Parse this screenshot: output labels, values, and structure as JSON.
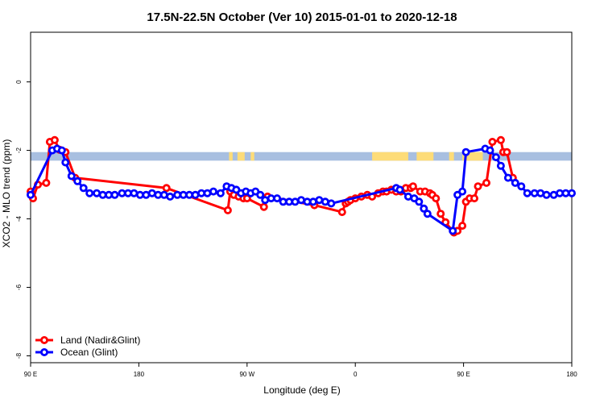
{
  "chart_data": {
    "type": "line",
    "title": "17.5N-22.5N October (Ver 10)   2015-01-01 to 2020-12-18",
    "xlabel": "Longitude (deg E)",
    "ylabel": "XCO2 - MLO trend (ppm)",
    "x_ticks": [
      {
        "value": 90,
        "label": "90 E"
      },
      {
        "value": 180,
        "label": "180"
      },
      {
        "value": 270,
        "label": "90 W"
      },
      {
        "value": 360,
        "label": "0"
      },
      {
        "value": 450,
        "label": "90 E"
      },
      {
        "value": 540,
        "label": "180"
      }
    ],
    "y_ticks": [
      {
        "value": 0,
        "label": "0"
      },
      {
        "value": -2,
        "label": "-2"
      },
      {
        "value": -4,
        "label": "-4"
      },
      {
        "value": -6,
        "label": "-6"
      },
      {
        "value": -8,
        "label": "-8"
      }
    ],
    "xlim": [
      90,
      540
    ],
    "ylim": [
      -8.2,
      1.45
    ],
    "grid": false,
    "legend": {
      "position": "bottom-left"
    },
    "land_mask": {
      "y_range": [
        -2.05,
        -2.3
      ],
      "ocean_color": "#a8bfe0",
      "land_color": "#fddc78",
      "land_segments": [
        [
          255,
          258
        ],
        [
          262,
          268
        ],
        [
          273,
          276
        ],
        [
          374,
          404
        ],
        [
          411,
          425
        ],
        [
          438,
          442
        ],
        [
          449,
          466
        ]
      ]
    },
    "series": [
      {
        "name": "Land (Nadir&Glint)",
        "color": "#ff0000",
        "x": [
          90,
          92,
          96,
          103,
          106,
          110,
          114,
          119,
          127,
          203,
          254,
          256,
          259,
          263,
          267,
          270,
          284,
          287,
          326,
          349,
          352,
          354,
          356,
          360,
          365,
          370,
          374,
          379,
          383,
          386,
          390,
          394,
          398,
          402,
          406,
          408,
          414,
          418,
          422,
          424,
          427,
          431,
          435,
          442,
          445,
          449,
          452,
          455,
          459,
          462,
          469,
          474,
          481,
          483,
          486,
          491
        ],
        "y": [
          -3.2,
          -3.4,
          -3.0,
          -2.95,
          -1.75,
          -1.7,
          -1.98,
          -2.05,
          -2.8,
          -3.1,
          -3.75,
          -3.2,
          -3.3,
          -3.35,
          -3.4,
          -3.4,
          -3.65,
          -3.35,
          -3.6,
          -3.8,
          -3.55,
          -3.5,
          -3.45,
          -3.4,
          -3.35,
          -3.3,
          -3.35,
          -3.25,
          -3.2,
          -3.2,
          -3.15,
          -3.2,
          -3.2,
          -3.1,
          -3.1,
          -3.05,
          -3.2,
          -3.2,
          -3.25,
          -3.3,
          -3.4,
          -3.85,
          -4.1,
          -4.4,
          -4.35,
          -4.2,
          -3.5,
          -3.4,
          -3.4,
          -3.05,
          -2.95,
          -1.75,
          -1.7,
          -2.05,
          -2.05,
          -2.8
        ]
      },
      {
        "name": "Ocean (Glint)",
        "color": "#0000ff",
        "x": [
          90,
          108,
          112,
          116,
          119,
          124,
          129,
          134,
          139,
          145,
          150,
          155,
          160,
          166,
          171,
          176,
          181,
          186,
          191,
          196,
          201,
          206,
          212,
          217,
          222,
          227,
          232,
          237,
          242,
          248,
          253,
          257,
          261,
          265,
          269,
          273,
          277,
          281,
          285,
          290,
          295,
          300,
          305,
          310,
          315,
          320,
          325,
          330,
          335,
          340,
          394,
          397,
          404,
          409,
          413,
          417,
          420,
          441,
          445,
          449,
          452,
          468,
          472,
          477,
          481,
          487,
          493,
          498,
          503,
          509,
          514,
          519,
          525,
          530,
          535,
          540
        ],
        "y": [
          -3.3,
          -2.0,
          -1.95,
          -2.0,
          -2.35,
          -2.75,
          -2.9,
          -3.1,
          -3.25,
          -3.25,
          -3.3,
          -3.3,
          -3.3,
          -3.25,
          -3.25,
          -3.25,
          -3.3,
          -3.3,
          -3.25,
          -3.3,
          -3.3,
          -3.35,
          -3.3,
          -3.3,
          -3.3,
          -3.3,
          -3.25,
          -3.25,
          -3.2,
          -3.25,
          -3.05,
          -3.1,
          -3.15,
          -3.25,
          -3.2,
          -3.25,
          -3.2,
          -3.3,
          -3.45,
          -3.4,
          -3.4,
          -3.5,
          -3.5,
          -3.5,
          -3.45,
          -3.5,
          -3.5,
          -3.45,
          -3.5,
          -3.55,
          -3.1,
          -3.15,
          -3.35,
          -3.4,
          -3.5,
          -3.7,
          -3.85,
          -4.35,
          -3.3,
          -3.2,
          -2.05,
          -1.95,
          -2.0,
          -2.2,
          -2.45,
          -2.8,
          -2.95,
          -3.05,
          -3.25,
          -3.25,
          -3.25,
          -3.3,
          -3.3,
          -3.25,
          -3.25,
          -3.25
        ]
      }
    ]
  }
}
